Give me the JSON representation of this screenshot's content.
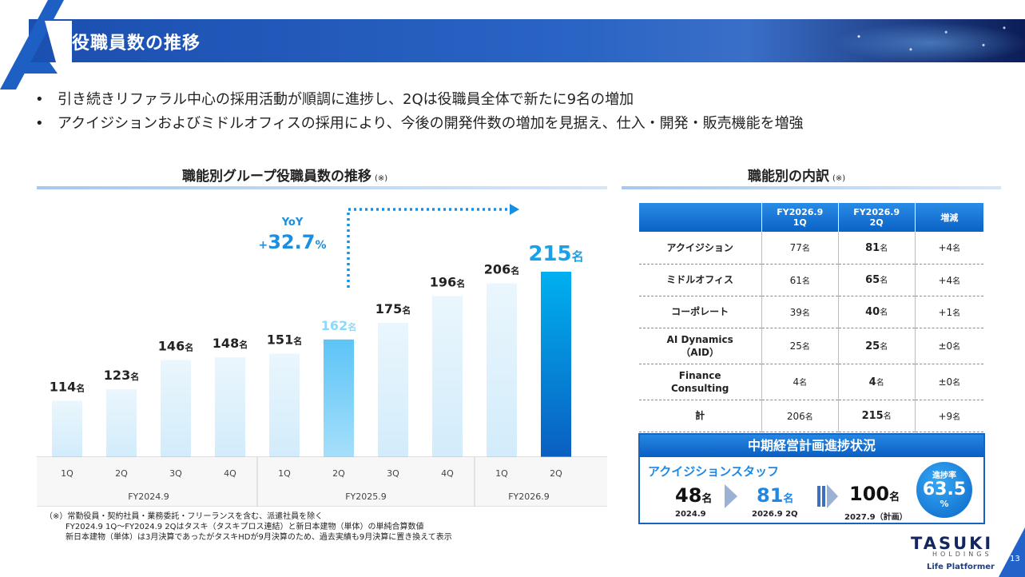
{
  "header": {
    "title": "役職員数の推移"
  },
  "bullets": [
    "引き続きリファラル中心の採用活動が順調に進捗し、2Qは役職員全体で新たに9名の増加",
    "アクイジションおよびミドルオフィスの採用により、今後の開発件数の増加を見据え、仕入・開発・販売機能を増強"
  ],
  "left_section": {
    "title": "職能別グループ役職員数の推移",
    "note": "(※)"
  },
  "right_section": {
    "title": "職能別の内訳",
    "note": "(※)"
  },
  "chart_data": {
    "type": "bar",
    "title": "職能別グループ役職員数の推移",
    "categories": [
      "1Q",
      "2Q",
      "3Q",
      "4Q",
      "1Q",
      "2Q",
      "3Q",
      "4Q",
      "1Q",
      "2Q"
    ],
    "groups": [
      {
        "label": "FY2024.9",
        "count": 4
      },
      {
        "label": "FY2025.9",
        "count": 4
      },
      {
        "label": "FY2026.9",
        "count": 2
      }
    ],
    "values": [
      114,
      123,
      146,
      148,
      151,
      162,
      175,
      196,
      206,
      215
    ],
    "unit": "名",
    "yoy": {
      "label": "YoY",
      "value": "+32.7",
      "unit": "%"
    },
    "colors": {
      "light": "#dceffc",
      "mid": "#8fd5fb",
      "dark": "#0a6ccc",
      "dark_top": "#00aef0",
      "text_mid": "#8ed8f8",
      "text_dark": "#1aa0e8",
      "yoy": "#1a8fe0"
    }
  },
  "footnote": [
    "（※）常勤役員・契約社員・業務委託・フリーランスを含む、派遣社員を除く",
    "FY2024.9 1Q～FY2024.9 2Qはタスキ（タスキプロス連結）と新日本建物（単体）の単純合算数値",
    "新日本建物（単体）は3月決算であったがタスキHDが9月決算のため、過去実績も9月決算に置き換えて表示"
  ],
  "table": {
    "headers": [
      "",
      "FY2026.9\n1Q",
      "FY2026.9\n2Q",
      "増減"
    ],
    "unit": "名",
    "rows": [
      {
        "label": "アクイジション",
        "q1": "77",
        "q2": "81",
        "diff": "+4"
      },
      {
        "label": "ミドルオフィス",
        "q1": "61",
        "q2": "65",
        "diff": "+4"
      },
      {
        "label": "コーポレート",
        "q1": "39",
        "q2": "40",
        "diff": "+1"
      },
      {
        "label": "AI Dynamics\n（AID）",
        "q1": "25",
        "q2": "25",
        "diff": "±0"
      },
      {
        "label": "Finance\nConsulting",
        "q1": "4",
        "q2": "4",
        "diff": "±0"
      },
      {
        "label": "計",
        "q1": "206",
        "q2": "215",
        "diff": "+9"
      }
    ]
  },
  "plan": {
    "title": "中期経営計画進捗状況",
    "subtitle": "アクイジションスタッフ",
    "unit": "名",
    "items": [
      {
        "value": "48",
        "caption": "2024.9"
      },
      {
        "value": "81",
        "caption": "2026.9 2Q"
      },
      {
        "value": "100",
        "caption": "2027.9（計画）"
      }
    ],
    "progress": {
      "label": "進捗率",
      "value": "63.5",
      "unit": "%"
    }
  },
  "footer": {
    "brand": "TASUKI",
    "brand_sub": "HOLDINGS",
    "tagline": "Life Platformer",
    "page": "13"
  }
}
